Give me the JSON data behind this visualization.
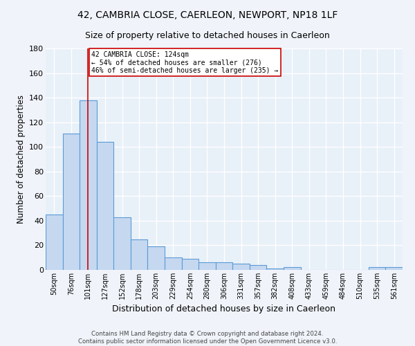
{
  "title1": "42, CAMBRIA CLOSE, CAERLEON, NEWPORT, NP18 1LF",
  "title2": "Size of property relative to detached houses in Caerleon",
  "xlabel": "Distribution of detached houses by size in Caerleon",
  "ylabel": "Number of detached properties",
  "footer1": "Contains HM Land Registry data © Crown copyright and database right 2024.",
  "footer2": "Contains public sector information licensed under the Open Government Licence v3.0.",
  "bin_labels": [
    "50sqm",
    "76sqm",
    "101sqm",
    "127sqm",
    "152sqm",
    "178sqm",
    "203sqm",
    "229sqm",
    "254sqm",
    "280sqm",
    "306sqm",
    "331sqm",
    "357sqm",
    "382sqm",
    "408sqm",
    "433sqm",
    "459sqm",
    "484sqm",
    "510sqm",
    "535sqm",
    "561sqm"
  ],
  "bar_values": [
    45,
    111,
    138,
    104,
    43,
    25,
    19,
    10,
    9,
    6,
    6,
    5,
    4,
    1,
    2,
    0,
    0,
    0,
    0,
    2,
    2
  ],
  "bar_color": "#c5d8f0",
  "bar_edge_color": "#5b9bd5",
  "ylim": [
    0,
    180
  ],
  "yticks": [
    0,
    20,
    40,
    60,
    80,
    100,
    120,
    140,
    160,
    180
  ],
  "property_bin_index": 2,
  "vline_color": "#cc0000",
  "annotation_text": "42 CAMBRIA CLOSE: 124sqm\n← 54% of detached houses are smaller (276)\n46% of semi-detached houses are larger (235) →",
  "annotation_box_color": "#ffffff",
  "annotation_box_edge": "#cc0000",
  "bg_color": "#e8f0f8",
  "fig_bg_color": "#f0f4fa",
  "grid_color": "#ffffff",
  "title1_fontsize": 10,
  "title2_fontsize": 9,
  "xlabel_fontsize": 9,
  "ylabel_fontsize": 8.5,
  "footer_fontsize": 6.2
}
